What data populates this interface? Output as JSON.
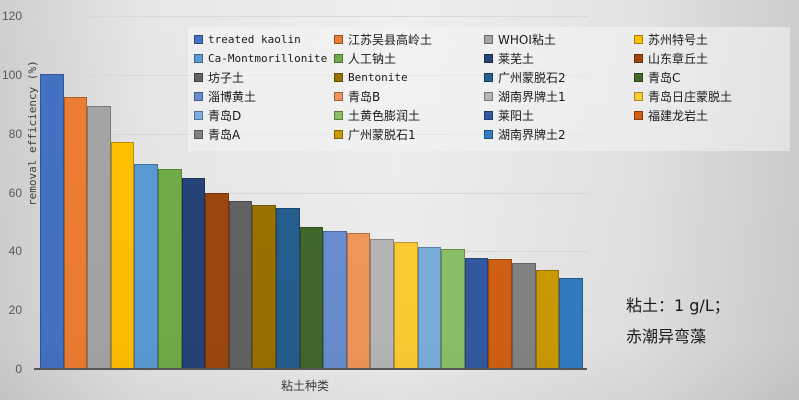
{
  "chart_data": {
    "type": "bar",
    "title": "",
    "xlabel": "粘土种类",
    "ylabel": "removal efficiency (%)",
    "ylim": [
      0,
      120
    ],
    "yticks": [
      0,
      20,
      40,
      60,
      80,
      100,
      120
    ],
    "grid": true,
    "legend_position": "top-right",
    "categories": [
      "treated kaolin",
      "江苏吴县高岭土",
      "WHOI粘土",
      "苏州特号土",
      "Ca-Montmorillonite",
      "人工钠土",
      "莱芜土",
      "山东章丘土",
      "坊子土",
      "Bentonite",
      "广州蒙脱石2",
      "青岛C",
      "淄博黄土",
      "青岛B",
      "湖南界牌土1",
      "青岛日庄蒙脱土",
      "青岛D",
      "土黄色膨润土",
      "莱阳土",
      "福建龙岩土",
      "青岛A",
      "广州蒙脱石1",
      "湖南界牌土2"
    ],
    "values": [
      100,
      92,
      89,
      77,
      69.5,
      67.8,
      64.7,
      59.5,
      56.8,
      55.5,
      54.4,
      48,
      46.6,
      46,
      43.9,
      42.9,
      41.2,
      40.5,
      37.4,
      37.1,
      35.7,
      33.3,
      30.6
    ],
    "colors": [
      "#4472c4",
      "#ed7d31",
      "#a5a5a5",
      "#ffc000",
      "#5b9bd5",
      "#70ad47",
      "#264478",
      "#9e480e",
      "#636363",
      "#997300",
      "#255e91",
      "#43682b",
      "#698ed0",
      "#f1975a",
      "#b7b7b7",
      "#ffcd33",
      "#7cafdd",
      "#8cc168",
      "#335aa1",
      "#d26012",
      "#848484",
      "#cc9a00",
      "#327dc2"
    ],
    "annotations": [
      "粘土：1 g/L；",
      "赤潮异弯藻"
    ]
  },
  "axis": {
    "yticks": [
      "120",
      "100",
      "80",
      "60",
      "40",
      "20",
      "0"
    ],
    "ylabel": "removal efficiency (%)",
    "xlabel": "粘土种类"
  },
  "legend": {
    "items": [
      {
        "label": "treated kaolin",
        "color": "#4472c4"
      },
      {
        "label": "江苏吴县高岭土",
        "color": "#ed7d31"
      },
      {
        "label": "WHOI粘土",
        "color": "#a5a5a5"
      },
      {
        "label": "苏州特号土",
        "color": "#ffc000"
      },
      {
        "label": "Ca-Montmorillonite",
        "color": "#5b9bd5"
      },
      {
        "label": "人工钠土",
        "color": "#70ad47"
      },
      {
        "label": "莱芜土",
        "color": "#264478"
      },
      {
        "label": "山东章丘土",
        "color": "#9e480e"
      },
      {
        "label": "坊子土",
        "color": "#636363"
      },
      {
        "label": "Bentonite",
        "color": "#997300"
      },
      {
        "label": "广州蒙脱石2",
        "color": "#255e91"
      },
      {
        "label": "青岛C",
        "color": "#43682b"
      },
      {
        "label": "淄博黄土",
        "color": "#698ed0"
      },
      {
        "label": "青岛B",
        "color": "#f1975a"
      },
      {
        "label": "湖南界牌土1",
        "color": "#b7b7b7"
      },
      {
        "label": "青岛日庄蒙脱土",
        "color": "#ffcd33"
      },
      {
        "label": "青岛D",
        "color": "#7cafdd"
      },
      {
        "label": "土黄色膨润土",
        "color": "#8cc168"
      },
      {
        "label": "莱阳土",
        "color": "#335aa1"
      },
      {
        "label": "福建龙岩土",
        "color": "#d26012"
      },
      {
        "label": "青岛A",
        "color": "#848484"
      },
      {
        "label": "广州蒙脱石1",
        "color": "#cc9a00"
      },
      {
        "label": "湖南界牌土2",
        "color": "#327dc2"
      }
    ]
  },
  "note": {
    "line1": "粘土：1 g/L；",
    "line2": "赤潮异弯藻"
  }
}
